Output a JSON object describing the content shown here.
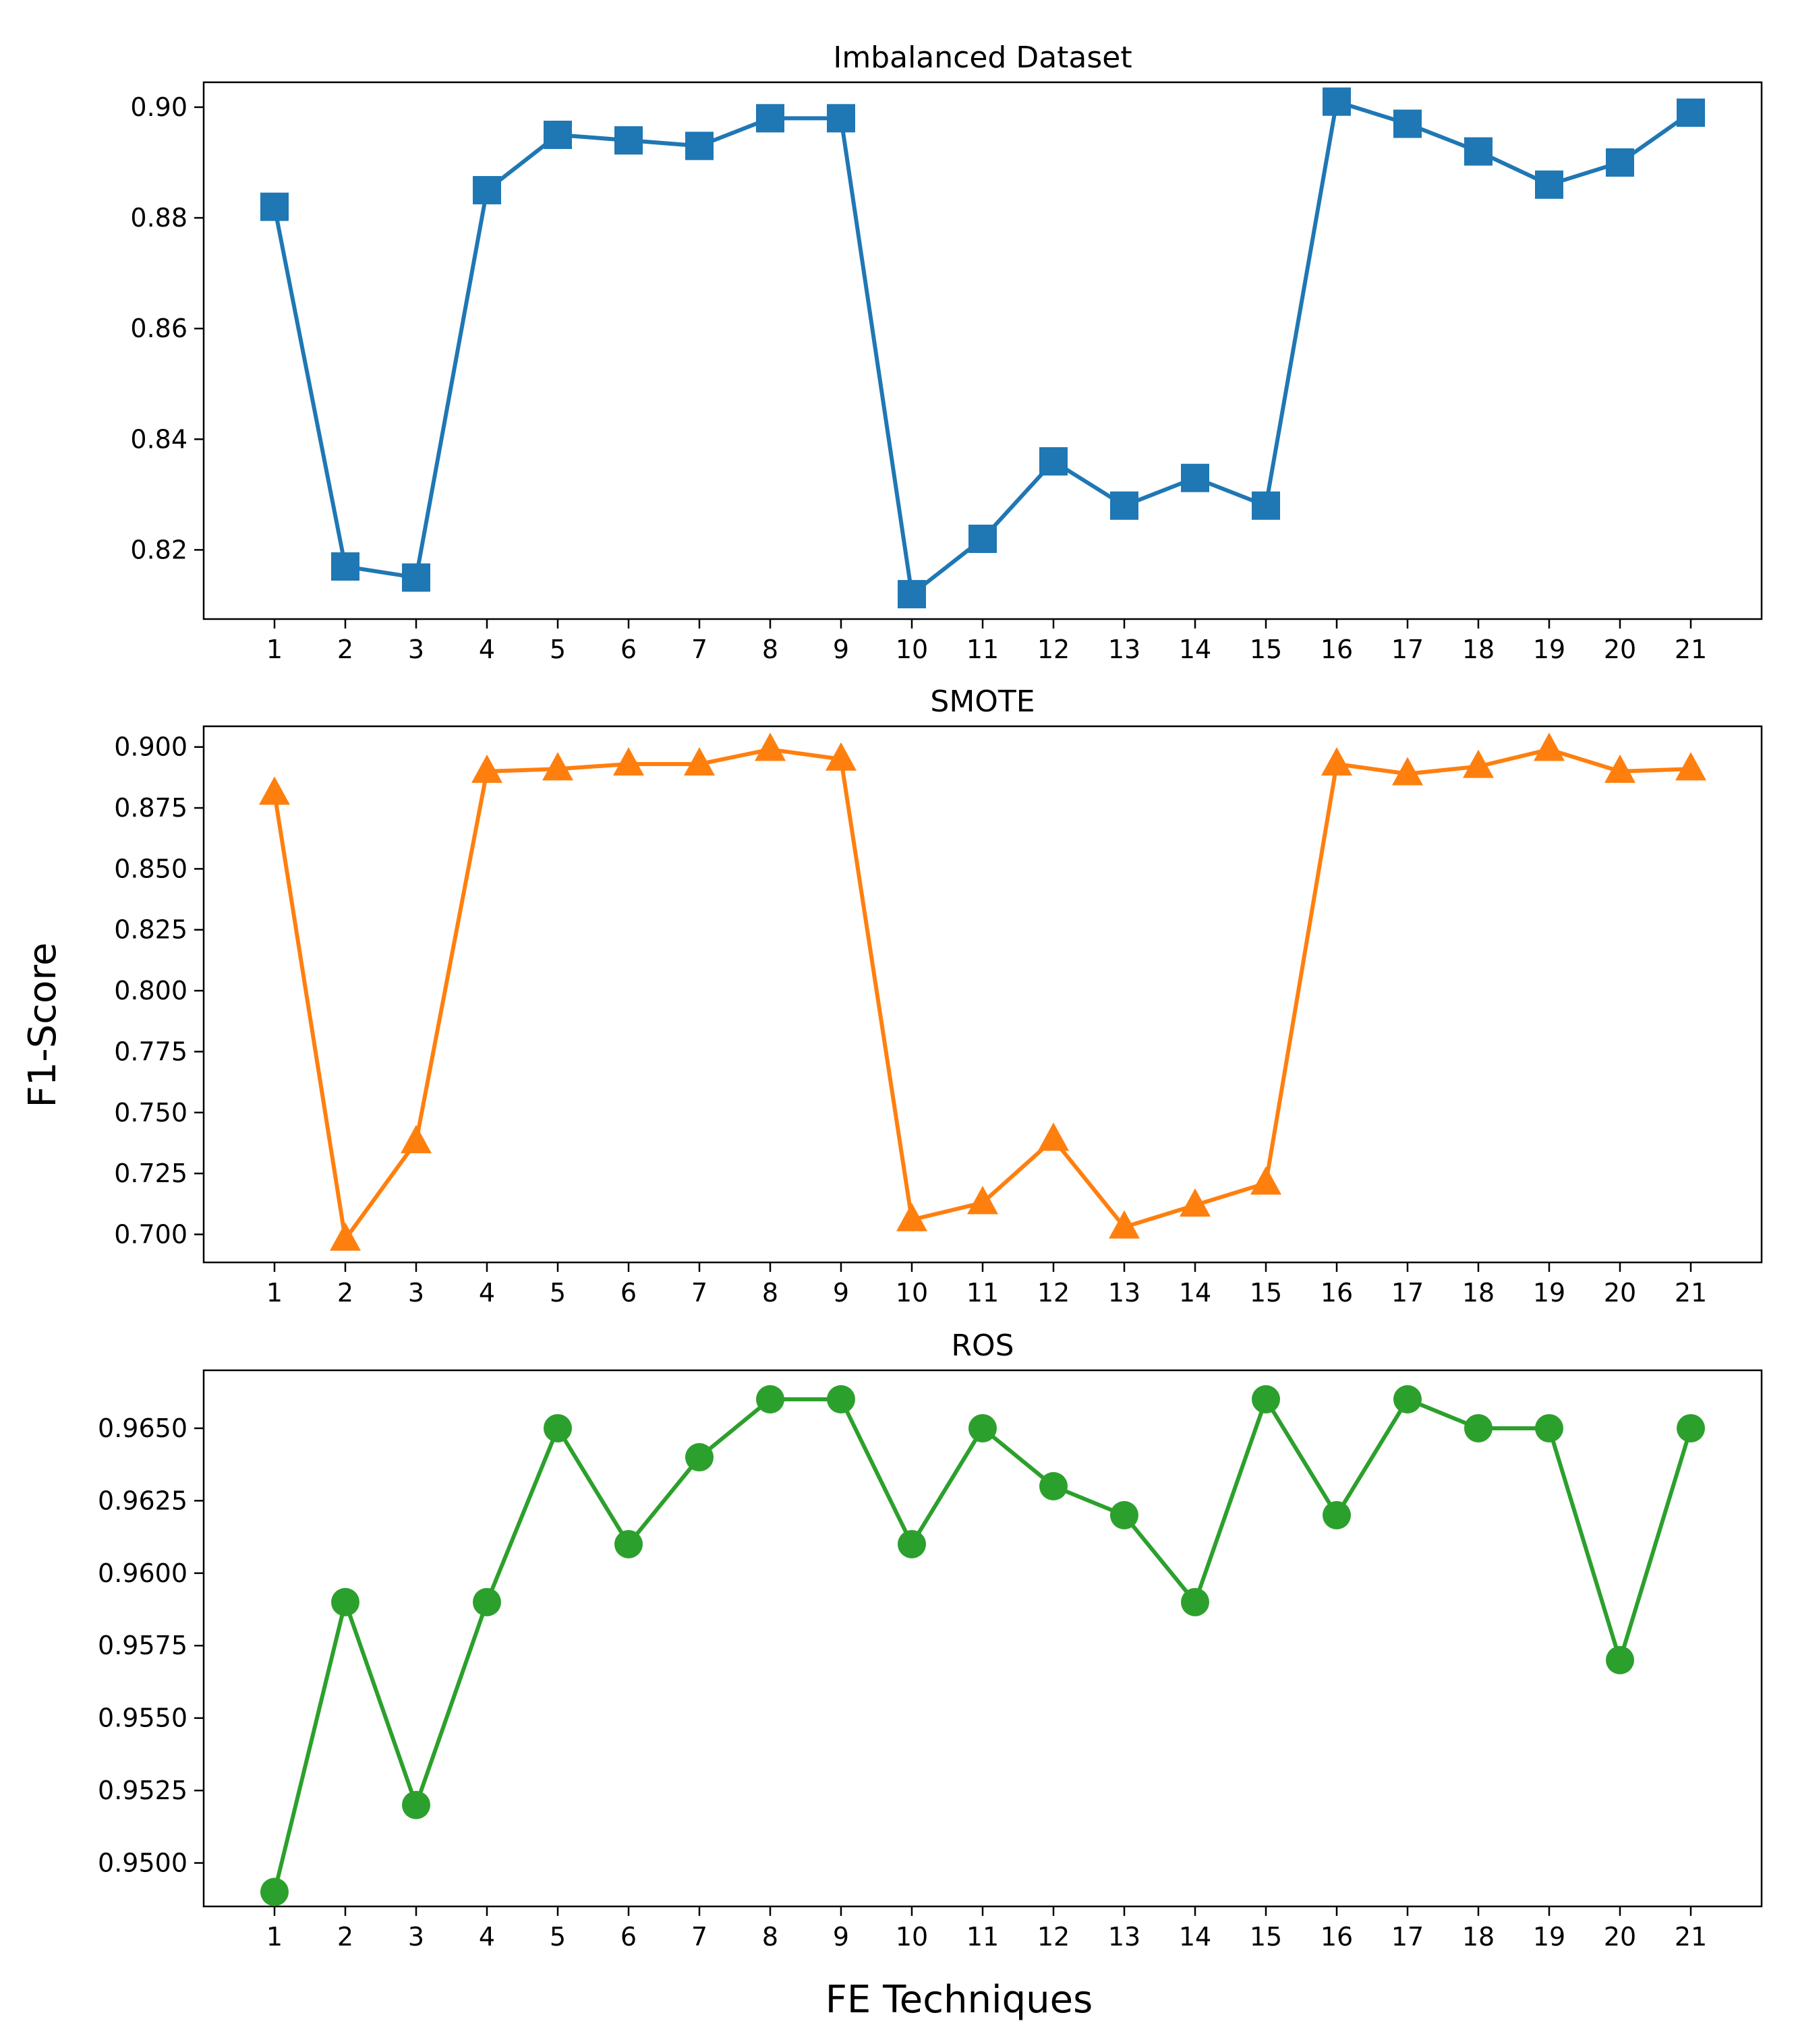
{
  "chart_data": {
    "type": "line",
    "shared_xlabel": "FE Techniques",
    "shared_ylabel": "F1-Score",
    "panels": [
      {
        "title": "Imbalanced Dataset",
        "marker": "square",
        "color": "#1f77b4",
        "x": [
          1,
          2,
          3,
          4,
          5,
          6,
          7,
          8,
          9,
          10,
          11,
          12,
          13,
          14,
          15,
          16,
          17,
          18,
          19,
          20,
          21
        ],
        "values": [
          0.882,
          0.817,
          0.815,
          0.885,
          0.895,
          0.894,
          0.893,
          0.898,
          0.898,
          0.812,
          0.822,
          0.836,
          0.828,
          0.833,
          0.828,
          0.901,
          0.897,
          0.892,
          0.886,
          0.89,
          0.899
        ],
        "yticks": [
          "0.82",
          "0.84",
          "0.86",
          "0.88",
          "0.90"
        ],
        "ylim": [
          0.8075,
          0.9045
        ]
      },
      {
        "title": "SMOTE",
        "marker": "triangle",
        "color": "#ff7f0e",
        "x": [
          1,
          2,
          3,
          4,
          5,
          6,
          7,
          8,
          9,
          10,
          11,
          12,
          13,
          14,
          15,
          16,
          17,
          18,
          19,
          20,
          21
        ],
        "values": [
          0.881,
          0.698,
          0.738,
          0.89,
          0.891,
          0.893,
          0.893,
          0.899,
          0.895,
          0.706,
          0.713,
          0.739,
          0.703,
          0.712,
          0.721,
          0.893,
          0.889,
          0.892,
          0.899,
          0.89,
          0.891
        ],
        "yticks": [
          "0.700",
          "0.725",
          "0.750",
          "0.775",
          "0.800",
          "0.825",
          "0.850",
          "0.875",
          "0.900"
        ],
        "ylim": [
          0.6885,
          0.9085
        ]
      },
      {
        "title": "ROS",
        "marker": "circle",
        "color": "#2ca02c",
        "x": [
          1,
          2,
          3,
          4,
          5,
          6,
          7,
          8,
          9,
          10,
          11,
          12,
          13,
          14,
          15,
          16,
          17,
          18,
          19,
          20,
          21
        ],
        "values": [
          0.949,
          0.959,
          0.952,
          0.959,
          0.965,
          0.961,
          0.964,
          0.966,
          0.966,
          0.961,
          0.965,
          0.963,
          0.962,
          0.959,
          0.966,
          0.962,
          0.966,
          0.965,
          0.965,
          0.957,
          0.965
        ],
        "yticks": [
          "0.9500",
          "0.9525",
          "0.9550",
          "0.9575",
          "0.9600",
          "0.9625",
          "0.9650"
        ],
        "ylim": [
          0.9485,
          0.967
        ]
      }
    ]
  }
}
